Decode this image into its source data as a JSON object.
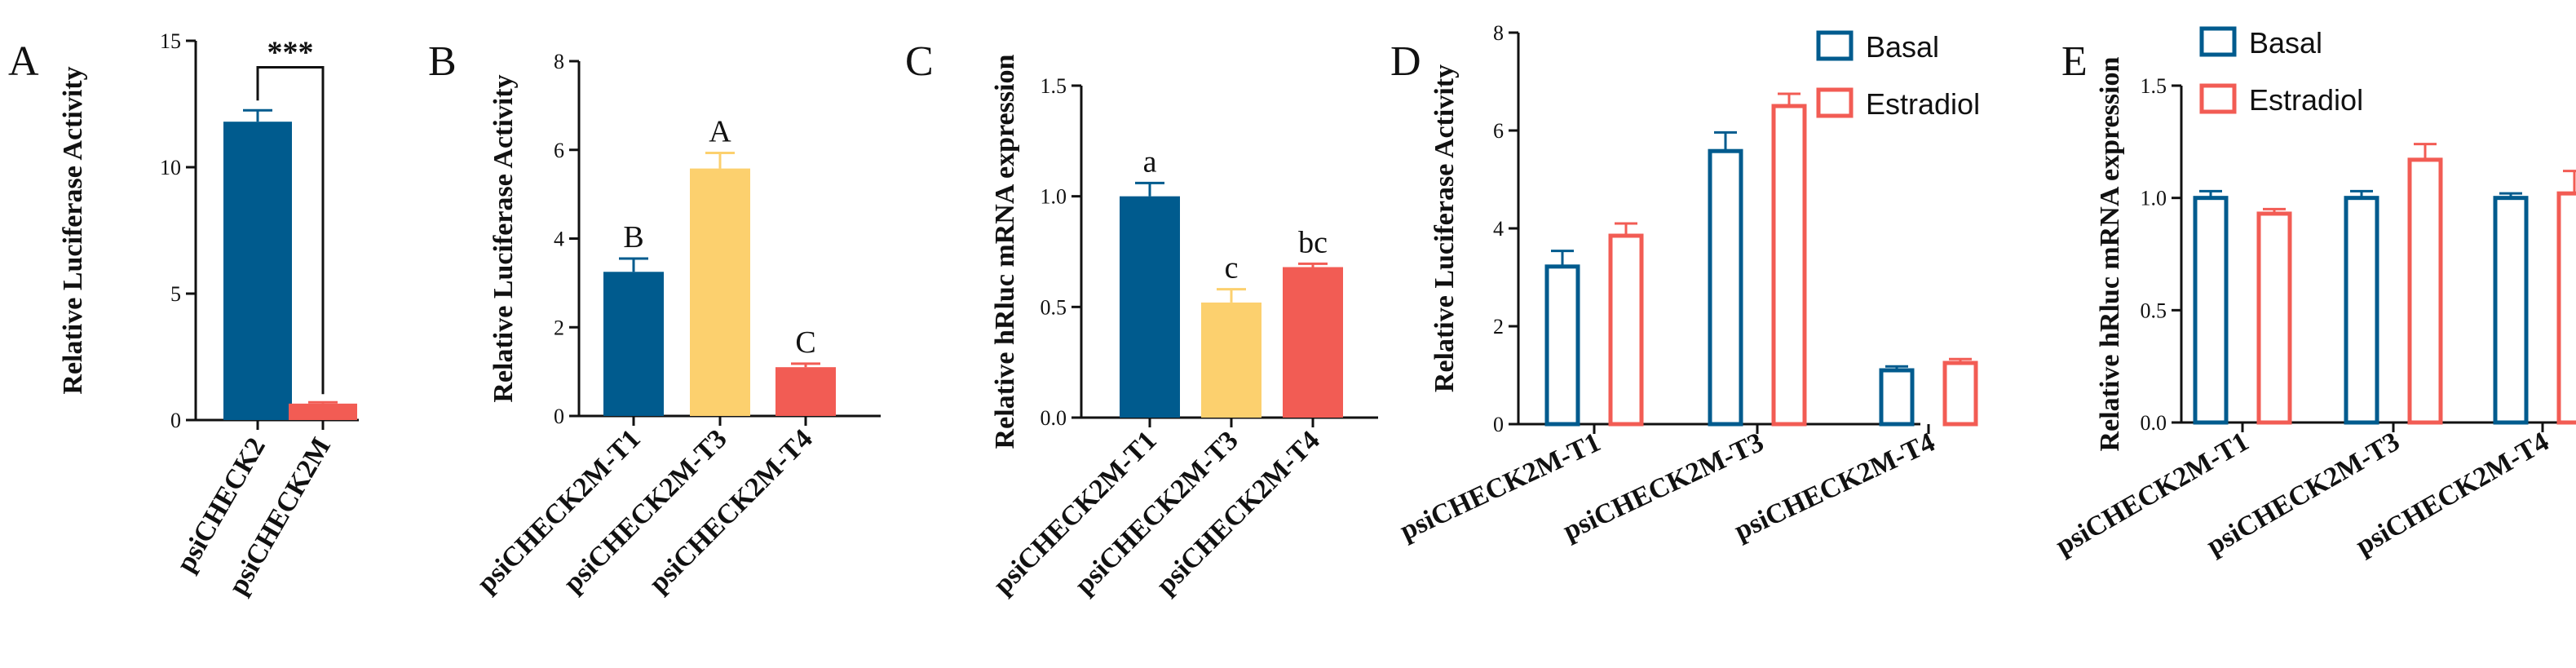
{
  "figure": {
    "colors": {
      "blue": "#005b8e",
      "yellow": "#fcd06e",
      "red": "#f25c54",
      "black": "#111111"
    }
  },
  "chart_data": [
    {
      "panel": "A",
      "type": "bar",
      "ylabel": "Relative Luciferase Activity",
      "categories": [
        "psiCHECK2",
        "psiCHECK2M"
      ],
      "values": [
        11.8,
        0.65
      ],
      "errors": [
        0.45,
        0.05
      ],
      "fills": [
        "#005b8e",
        "#f25c54"
      ],
      "ylim": [
        0,
        15
      ],
      "yticks": [
        0,
        5,
        10,
        15
      ],
      "significance": "***"
    },
    {
      "panel": "B",
      "type": "bar",
      "ylabel": "Relative Luciferase Activity",
      "categories": [
        "psiCHECK2M-T1",
        "psiCHECK2M-T3",
        "psiCHECK2M-T4"
      ],
      "values": [
        3.25,
        5.58,
        1.1
      ],
      "errors": [
        0.3,
        0.35,
        0.08
      ],
      "fills": [
        "#005b8e",
        "#fcd06e",
        "#f25c54"
      ],
      "letters": [
        "B",
        "A",
        "C"
      ],
      "ylim": [
        0,
        8
      ],
      "yticks": [
        0,
        2,
        4,
        6,
        8
      ]
    },
    {
      "panel": "C",
      "type": "bar",
      "ylabel": "Relative hRluc mRNA expression",
      "categories": [
        "psiCHECK2M-T1",
        "psiCHECK2M-T3",
        "psiCHECK2M-T4"
      ],
      "values": [
        1.0,
        0.52,
        0.68
      ],
      "errors": [
        0.06,
        0.06,
        0.015
      ],
      "fills": [
        "#005b8e",
        "#fcd06e",
        "#f25c54"
      ],
      "letters": [
        "a",
        "c",
        "bc"
      ],
      "ylim": [
        0,
        1.5
      ],
      "yticks": [
        "0.0",
        "0.5",
        "1.0",
        "1.5"
      ]
    },
    {
      "panel": "D",
      "type": "bar",
      "ylabel": "Relative Luciferase Activity",
      "categories": [
        "psiCHECK2M-T1",
        "psiCHECK2M-T3",
        "psiCHECK2M-T4"
      ],
      "series": [
        {
          "name": "Basal",
          "values": [
            3.22,
            5.58,
            1.1
          ],
          "errors": [
            0.32,
            0.38,
            0.08
          ],
          "color": "#005b8e"
        },
        {
          "name": "Estradiol",
          "values": [
            3.85,
            6.5,
            1.25
          ],
          "errors": [
            0.25,
            0.25,
            0.08
          ],
          "color": "#f25c54"
        }
      ],
      "ylim": [
        0,
        8
      ],
      "yticks": [
        0,
        2,
        4,
        6,
        8
      ],
      "legend": "top-right"
    },
    {
      "panel": "E",
      "type": "bar",
      "ylabel": "Relative hRluc mRNA expression",
      "categories": [
        "psiCHECK2M-T1",
        "psiCHECK2M-T3",
        "psiCHECK2M-T4"
      ],
      "series": [
        {
          "name": "Basal",
          "values": [
            1.0,
            1.0,
            1.0
          ],
          "errors": [
            0.03,
            0.03,
            0.02
          ],
          "color": "#005b8e"
        },
        {
          "name": "Estradiol",
          "values": [
            0.93,
            1.17,
            1.02
          ],
          "errors": [
            0.02,
            0.07,
            0.1
          ],
          "color": "#f25c54"
        }
      ],
      "ylim": [
        0,
        1.5
      ],
      "yticks": [
        "0.0",
        "0.5",
        "1.0",
        "1.5"
      ],
      "legend": "top-left"
    }
  ]
}
